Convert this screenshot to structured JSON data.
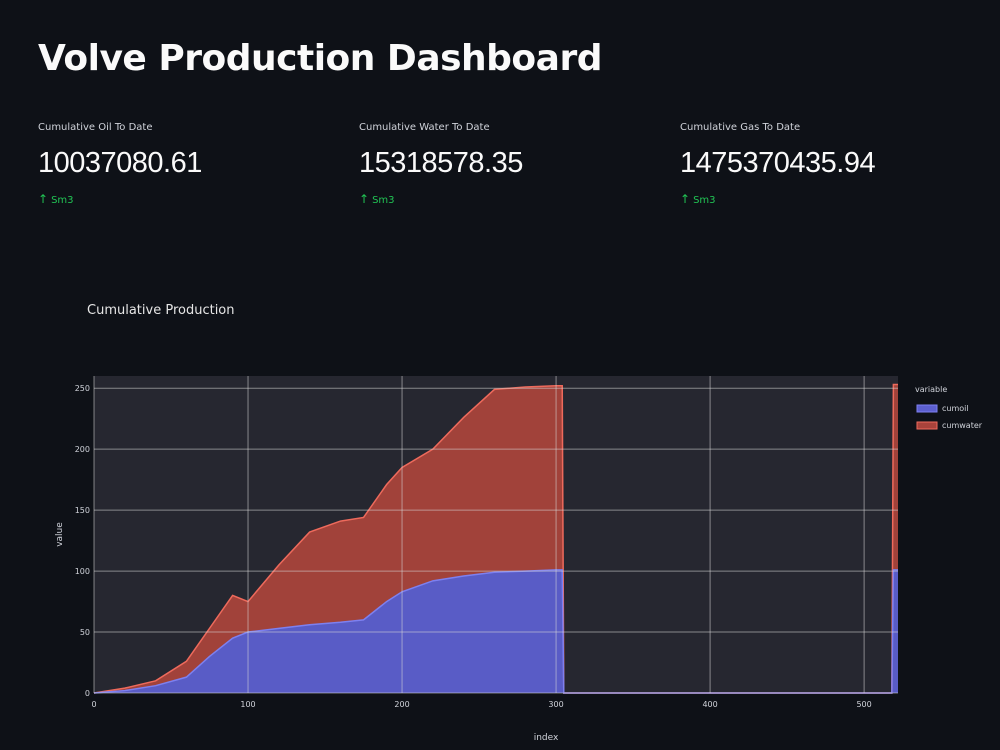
{
  "page": {
    "title": "Volve Production Dashboard"
  },
  "metrics": [
    {
      "label": "Cumulative Oil To Date",
      "value": "10037080.61",
      "delta": "Sm3"
    },
    {
      "label": "Cumulative Water To Date",
      "value": "15318578.35",
      "delta": "Sm3"
    },
    {
      "label": "Cumulative Gas To Date",
      "value": "1475370435.94",
      "delta": "Sm3"
    }
  ],
  "colors": {
    "background": "#0e1117",
    "plot_background": "#262730",
    "oil": "#5c5fcf",
    "oil_line": "#7d80f0",
    "water": "#a8433b",
    "water_line": "#ee6a5c",
    "delta": "#21c354",
    "grid": "#d8d8d8"
  },
  "chart_title": "Cumulative Production",
  "chart_data": {
    "type": "area",
    "title": "Cumulative Production",
    "xlabel": "index",
    "ylabel": "value",
    "xlim": [
      0,
      522
    ],
    "ylim": [
      0,
      260
    ],
    "xticks": [
      0,
      100,
      200,
      300,
      400,
      500
    ],
    "yticks": [
      0,
      50,
      100,
      150,
      200,
      250
    ],
    "ytick_labels": [
      "0",
      "50",
      "100",
      "150",
      "200",
      "250"
    ],
    "legend_title": "variable",
    "legend_position": "top-right",
    "grid": true,
    "series": [
      {
        "name": "cumoil",
        "color": "#5c5fcf",
        "points": [
          [
            0,
            0
          ],
          [
            20,
            2
          ],
          [
            40,
            6
          ],
          [
            60,
            13
          ],
          [
            75,
            30
          ],
          [
            90,
            45
          ],
          [
            100,
            50
          ],
          [
            120,
            53
          ],
          [
            140,
            56
          ],
          [
            160,
            58
          ],
          [
            175,
            60
          ],
          [
            190,
            75
          ],
          [
            200,
            83
          ],
          [
            220,
            92
          ],
          [
            240,
            96
          ],
          [
            260,
            99
          ],
          [
            280,
            100
          ],
          [
            300,
            101
          ],
          [
            304,
            101
          ],
          [
            305,
            0
          ],
          [
            518,
            0
          ],
          [
            519,
            101
          ],
          [
            522,
            101
          ]
        ]
      },
      {
        "name": "cumwater",
        "color": "#a8433b",
        "points": [
          [
            0,
            0
          ],
          [
            20,
            2
          ],
          [
            40,
            4
          ],
          [
            60,
            13
          ],
          [
            75,
            23
          ],
          [
            90,
            35
          ],
          [
            100,
            25
          ],
          [
            120,
            52
          ],
          [
            140,
            76
          ],
          [
            160,
            83
          ],
          [
            175,
            84
          ],
          [
            190,
            96
          ],
          [
            200,
            102
          ],
          [
            220,
            108
          ],
          [
            240,
            130
          ],
          [
            260,
            150
          ],
          [
            280,
            151
          ],
          [
            300,
            151
          ],
          [
            304,
            151
          ],
          [
            305,
            0
          ],
          [
            518,
            0
          ],
          [
            519,
            152
          ],
          [
            522,
            152
          ]
        ]
      }
    ]
  }
}
